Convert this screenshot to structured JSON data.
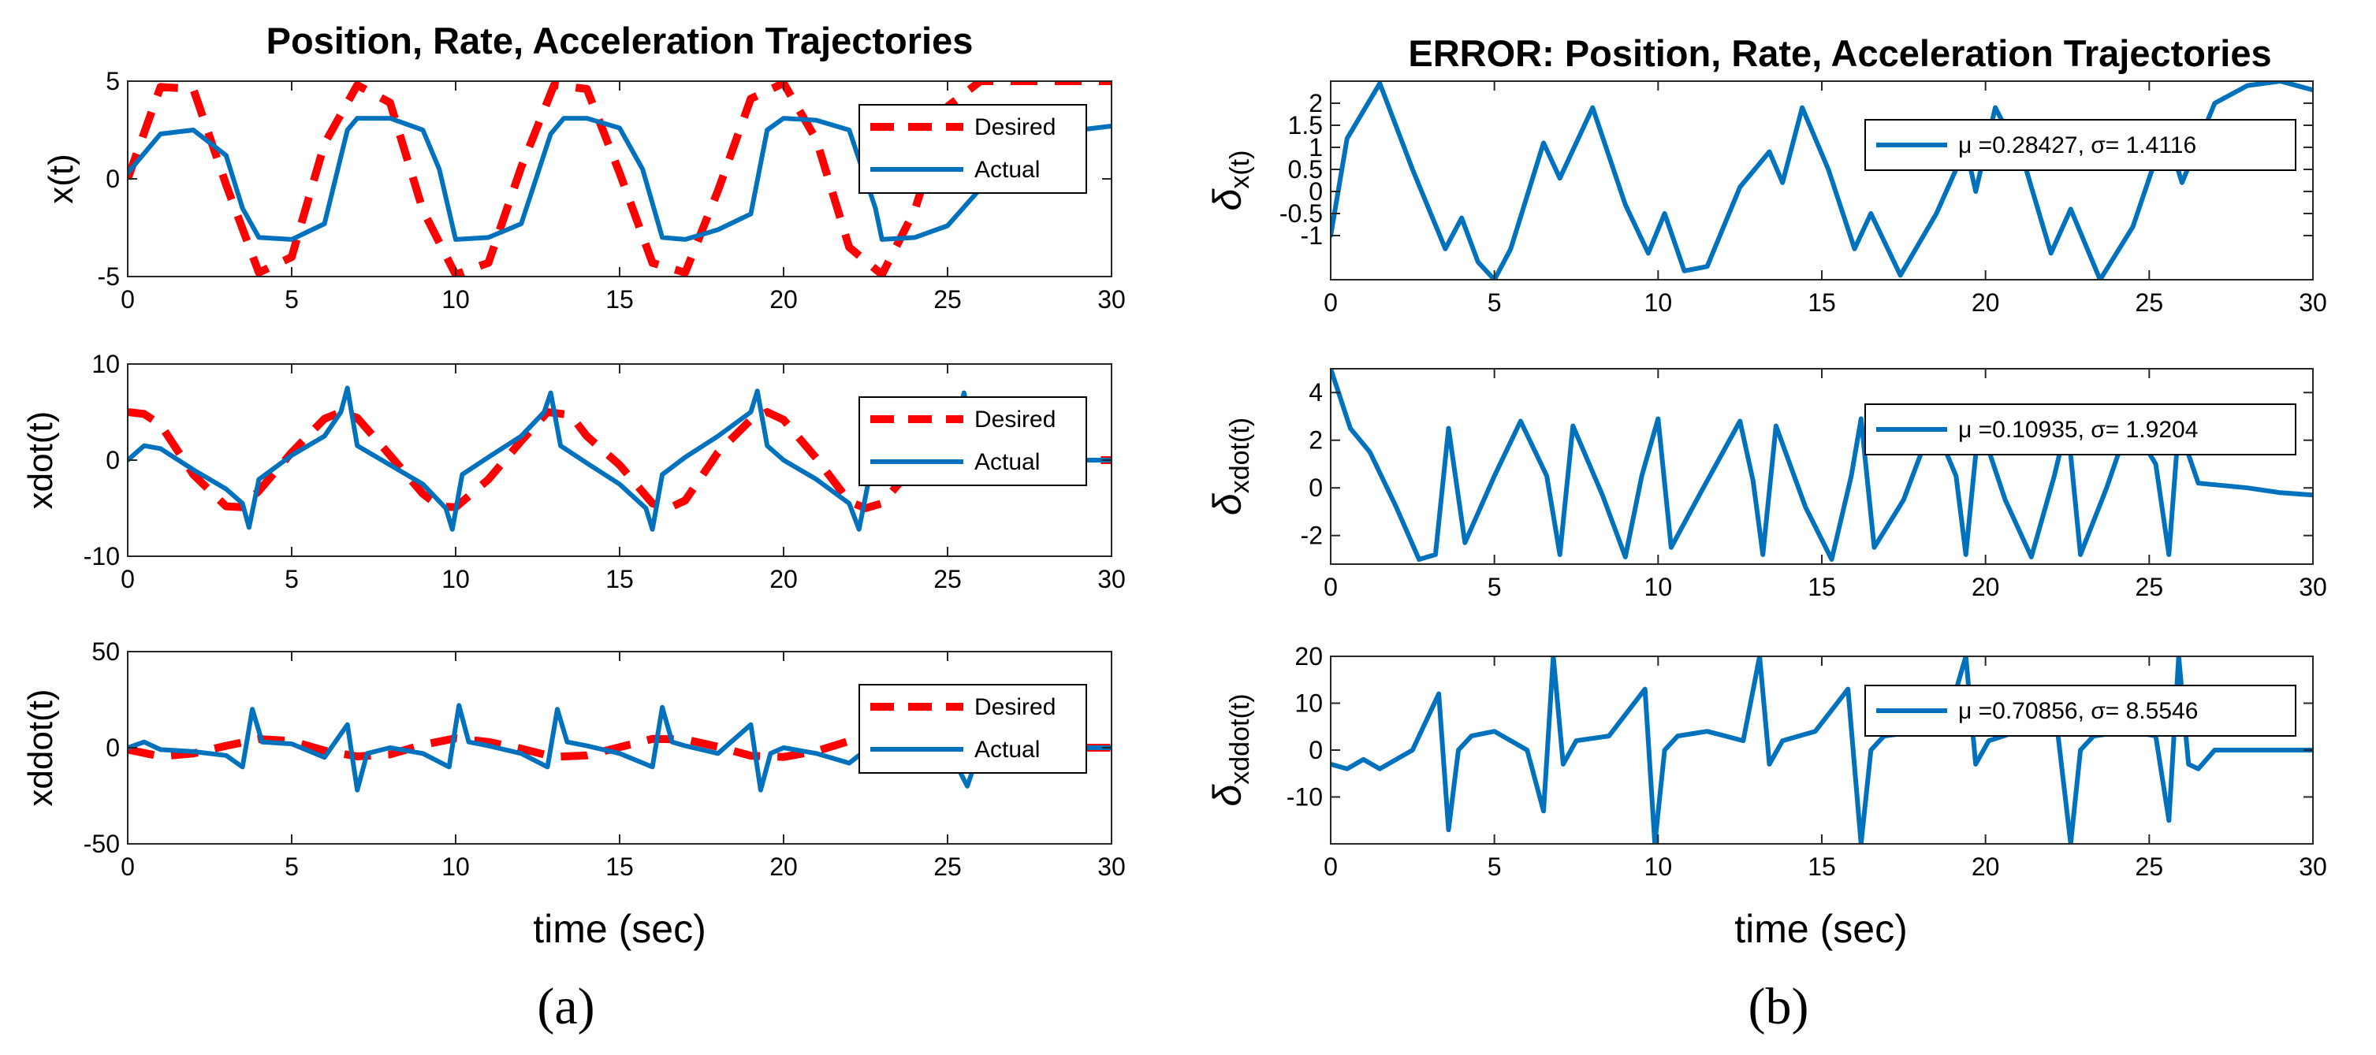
{
  "colors": {
    "desired": "#ff0000",
    "actual": "#0072bd",
    "axis": "#262626",
    "legend_border": "#000000"
  },
  "chart_data": [
    {
      "type": "line",
      "panel": "a",
      "title": "Position, Rate, Acceleration Trajectories",
      "xlabel": "",
      "ylabel": "x(t)",
      "xlim": [
        0,
        30
      ],
      "ylim": [
        -5,
        5
      ],
      "xticks": [
        0,
        5,
        10,
        15,
        20,
        25,
        30
      ],
      "yticks": [
        -5,
        0,
        5
      ],
      "legend": {
        "position": "top-right",
        "entries": [
          "Desired",
          "Actual"
        ]
      },
      "series": [
        {
          "name": "Desired",
          "style": "dashed",
          "color": "#ff0000",
          "x": [
            0,
            1,
            2,
            3,
            4,
            5,
            6,
            7,
            8,
            9,
            10,
            11,
            12,
            13,
            14,
            15,
            16,
            17,
            18,
            19,
            20,
            21,
            22,
            23,
            24,
            25,
            26,
            27,
            28,
            29,
            30
          ],
          "y": [
            0,
            4.7,
            4.6,
            -0.3,
            -4.8,
            -4.0,
            1.8,
            4.8,
            3.9,
            -1.6,
            -4.9,
            -4.3,
            0.6,
            4.8,
            4.6,
            0.3,
            -4.3,
            -4.8,
            -0.6,
            4.1,
            4.9,
            2.0,
            -3.5,
            -4.9,
            -1.6,
            3.7,
            5.0,
            5.0,
            5.0,
            5.0,
            5.0
          ]
        },
        {
          "name": "Actual",
          "style": "solid",
          "color": "#0072bd",
          "x": [
            0,
            1,
            2,
            3,
            3.5,
            4,
            5,
            6,
            6.7,
            7,
            8,
            9,
            9.5,
            10,
            11,
            12,
            12.9,
            13.3,
            14,
            15,
            15.7,
            16.3,
            17,
            18,
            19,
            19.5,
            20,
            21,
            22,
            22.8,
            23,
            24,
            25,
            26,
            27,
            28,
            29,
            30
          ],
          "y": [
            0.3,
            2.3,
            2.5,
            1.2,
            -1.5,
            -3.0,
            -3.1,
            -2.3,
            2.5,
            3.1,
            3.1,
            2.5,
            0.5,
            -3.1,
            -3.0,
            -2.3,
            2.3,
            3.1,
            3.1,
            2.6,
            0.5,
            -3.0,
            -3.1,
            -2.6,
            -1.8,
            2.5,
            3.1,
            3.0,
            2.5,
            -1.5,
            -3.1,
            -3.0,
            -2.4,
            -0.5,
            1.8,
            2.4,
            2.5,
            2.7
          ]
        }
      ]
    },
    {
      "type": "line",
      "panel": "a",
      "title": "",
      "xlabel": "",
      "ylabel": "xdot(t)",
      "xlim": [
        0,
        30
      ],
      "ylim": [
        -10,
        10
      ],
      "xticks": [
        0,
        5,
        10,
        15,
        20,
        25,
        30
      ],
      "yticks": [
        -10,
        0,
        10
      ],
      "legend": {
        "position": "top-right",
        "entries": [
          "Desired",
          "Actual"
        ]
      },
      "series": [
        {
          "name": "Desired",
          "style": "dashed",
          "color": "#ff0000",
          "x": [
            0,
            0.5,
            1,
            2,
            3,
            3.5,
            4,
            5,
            6,
            6.5,
            7,
            8,
            9,
            9.5,
            10,
            11,
            12,
            12.8,
            13.5,
            14,
            15,
            16,
            16.5,
            17,
            18,
            19,
            19.5,
            20,
            21,
            22,
            22.5,
            23,
            24,
            25,
            26,
            27,
            28,
            29,
            30
          ],
          "y": [
            5,
            4.8,
            3.7,
            -1.5,
            -4.8,
            -4.9,
            -3.2,
            0.8,
            4.3,
            5.0,
            4.4,
            0.5,
            -3.5,
            -4.8,
            -4.9,
            -2.0,
            2.0,
            5.0,
            4.7,
            2.5,
            -0.5,
            -4.5,
            -5.0,
            -4.2,
            0.8,
            4.2,
            5.0,
            4.2,
            0.2,
            -4.3,
            -5.0,
            -4.5,
            -0.5,
            -0.2,
            -0.1,
            0,
            0,
            0,
            0
          ]
        },
        {
          "name": "Actual",
          "style": "solid",
          "color": "#0072bd",
          "x": [
            0,
            0.5,
            1,
            2,
            3,
            3.5,
            3.7,
            4,
            5,
            6,
            6.5,
            6.7,
            7,
            8,
            9,
            9.7,
            9.9,
            10.2,
            11,
            12,
            12.7,
            12.9,
            13.2,
            14,
            15,
            15.8,
            16.0,
            16.3,
            17,
            18,
            19,
            19.2,
            19.5,
            20,
            21,
            22,
            22.3,
            22.6,
            23,
            24,
            25,
            25.5,
            26,
            27,
            28,
            29,
            30
          ],
          "y": [
            0,
            1.5,
            1.2,
            -1.0,
            -3.0,
            -4.5,
            -7.0,
            -2.0,
            0.5,
            2.5,
            5.0,
            7.5,
            1.5,
            -0.5,
            -2.5,
            -5.0,
            -7.2,
            -1.5,
            0.3,
            2.5,
            5.0,
            7.0,
            1.5,
            -0.3,
            -2.5,
            -5.0,
            -7.2,
            -1.5,
            0.3,
            2.5,
            5.0,
            7.2,
            1.5,
            0.0,
            -2.0,
            -4.5,
            -7.2,
            -2.0,
            0,
            0,
            0,
            7.0,
            0,
            0,
            0,
            0,
            0
          ]
        }
      ]
    },
    {
      "type": "line",
      "panel": "a",
      "title": "",
      "xlabel": "time (sec)",
      "ylabel": "xddot(t)",
      "xlim": [
        0,
        30
      ],
      "ylim": [
        -50,
        50
      ],
      "xticks": [
        0,
        5,
        10,
        15,
        20,
        25,
        30
      ],
      "yticks": [
        -50,
        0,
        50
      ],
      "legend": {
        "position": "top-right",
        "entries": [
          "Desired",
          "Actual"
        ]
      },
      "series": [
        {
          "name": "Desired",
          "style": "dashed",
          "color": "#ff0000",
          "x": [
            0,
            1,
            2,
            3,
            4,
            5,
            6,
            7,
            8,
            9,
            10,
            11,
            12,
            13,
            14,
            15,
            16,
            17,
            18,
            19,
            20,
            21,
            22,
            23,
            24,
            25,
            26,
            27,
            28,
            29,
            30
          ],
          "y": [
            -1,
            -4.5,
            -3,
            1,
            4.5,
            3.5,
            -1.5,
            -4.5,
            -3.5,
            1.5,
            4.9,
            3.0,
            -0.5,
            -4.8,
            -4.0,
            0.3,
            4.6,
            4.3,
            0.5,
            -4.2,
            -4.8,
            -1.8,
            3.5,
            4.9,
            1.5,
            -0.5,
            -0.2,
            0,
            0,
            0,
            0
          ]
        },
        {
          "name": "Actual",
          "style": "solid",
          "color": "#0072bd",
          "x": [
            0,
            0.5,
            1,
            2,
            3,
            3.5,
            3.8,
            4.1,
            5,
            6,
            6.7,
            7.0,
            7.3,
            8,
            9,
            9.8,
            10.1,
            10.4,
            11,
            12,
            12.8,
            13.1,
            13.4,
            14,
            15,
            16.0,
            16.3,
            16.6,
            17,
            18,
            19.0,
            19.3,
            19.6,
            20,
            21,
            22,
            22.6,
            23,
            24,
            25,
            25.6,
            26,
            27,
            28,
            29,
            30
          ],
          "y": [
            0,
            3,
            -1,
            -2,
            -4,
            -10,
            20,
            3,
            2,
            -5,
            12,
            -22,
            -3,
            0,
            -3,
            -10,
            22,
            3,
            1,
            -3,
            -10,
            20,
            3,
            1,
            -3,
            -10,
            21,
            3,
            1,
            -3,
            12,
            -22,
            -3,
            0,
            -3,
            -8,
            0,
            0,
            0,
            0,
            -20,
            0,
            0,
            0,
            0,
            0
          ]
        }
      ]
    },
    {
      "type": "line",
      "panel": "b",
      "title": "ERROR: Position, Rate, Acceleration Trajectories",
      "xlabel": "",
      "ylabel": "δ",
      "ylabel_subscript": "x(t)",
      "xlim": [
        0,
        30
      ],
      "ylim": [
        -2,
        2.5
      ],
      "xticks": [
        0,
        5,
        10,
        15,
        20,
        25,
        30
      ],
      "yticks": [
        -1,
        -0.5,
        0,
        0.5,
        1,
        1.5,
        2
      ],
      "legend": {
        "position": "top-right",
        "entries": [
          "μ =0.28427,  σ= 1.4116"
        ]
      },
      "series": [
        {
          "name": "μ =0.28427,  σ= 1.4116",
          "style": "solid",
          "color": "#0072bd",
          "x": [
            0,
            0.5,
            1.5,
            2.5,
            3.5,
            4,
            4.5,
            5,
            5.5,
            6.5,
            7,
            8,
            9,
            9.7,
            10.2,
            10.8,
            11.5,
            12.5,
            13.4,
            13.8,
            14.4,
            15.2,
            16,
            16.5,
            17.4,
            18.5,
            19.4,
            19.7,
            20.3,
            21.2,
            22,
            22.6,
            23.5,
            24.5,
            25.5,
            26,
            27,
            28,
            29,
            30
          ],
          "y": [
            -1,
            1.2,
            2.45,
            0.5,
            -1.3,
            -0.6,
            -1.6,
            -2.0,
            -1.3,
            1.1,
            0.3,
            1.9,
            -0.3,
            -1.4,
            -0.5,
            -1.8,
            -1.7,
            0.1,
            0.9,
            0.2,
            1.9,
            0.5,
            -1.3,
            -0.5,
            -1.9,
            -0.5,
            1.0,
            0.0,
            1.9,
            0.6,
            -1.4,
            -0.4,
            -2.0,
            -0.8,
            1.4,
            0.2,
            2.0,
            2.4,
            2.5,
            2.3
          ]
        }
      ]
    },
    {
      "type": "line",
      "panel": "b",
      "title": "",
      "xlabel": "",
      "ylabel": "δ",
      "ylabel_subscript": "xdot(t)",
      "xlim": [
        0,
        30
      ],
      "ylim": [
        -3.2,
        5
      ],
      "xticks": [
        0,
        5,
        10,
        15,
        20,
        25,
        30
      ],
      "yticks": [
        -2,
        0,
        2,
        4
      ],
      "legend": {
        "position": "top-right",
        "entries": [
          "μ =0.10935,  σ= 1.9204"
        ]
      },
      "series": [
        {
          "name": "μ =0.10935,  σ= 1.9204",
          "style": "solid",
          "color": "#0072bd",
          "x": [
            0,
            0.6,
            1.2,
            2,
            2.7,
            3.2,
            3.6,
            4.1,
            5,
            5.8,
            6.6,
            7.0,
            7.4,
            8.3,
            9,
            9.5,
            10.0,
            10.4,
            11.3,
            12.5,
            12.9,
            13.2,
            13.6,
            14.5,
            15.3,
            15.9,
            16.2,
            16.6,
            17.5,
            18.4,
            19.1,
            19.4,
            19.8,
            20.6,
            21.4,
            22.1,
            22.5,
            22.9,
            23.7,
            24.4,
            25.2,
            25.6,
            25.9,
            26.5,
            28,
            29,
            30
          ],
          "y": [
            5,
            2.5,
            1.5,
            -0.8,
            -3.0,
            -2.8,
            2.5,
            -2.3,
            0.5,
            2.8,
            0.5,
            -2.8,
            2.6,
            -0.3,
            -2.9,
            0.5,
            2.9,
            -2.5,
            -0.2,
            2.8,
            0.3,
            -2.8,
            2.6,
            -0.8,
            -3.0,
            0.5,
            2.9,
            -2.5,
            -0.5,
            2.8,
            0.5,
            -2.8,
            2.8,
            -0.5,
            -2.9,
            0.5,
            2.8,
            -2.8,
            0.0,
            2.8,
            1.0,
            -2.8,
            2.6,
            0.2,
            0.0,
            -0.2,
            -0.3
          ]
        }
      ]
    },
    {
      "type": "line",
      "panel": "b",
      "title": "",
      "xlabel": "time (sec)",
      "ylabel": "δ",
      "ylabel_subscript": "xddot(t)",
      "xlim": [
        0,
        30
      ],
      "ylim": [
        -20,
        20
      ],
      "xticks": [
        0,
        5,
        10,
        15,
        20,
        25,
        30
      ],
      "yticks": [
        -10,
        0,
        10,
        20
      ],
      "legend": {
        "position": "top-right",
        "entries": [
          "μ =0.70856,  σ= 8.5546"
        ]
      },
      "series": [
        {
          "name": "μ =0.70856,  σ= 8.5546",
          "style": "solid",
          "color": "#0072bd",
          "x": [
            0,
            0.5,
            1,
            1.5,
            2.5,
            3.3,
            3.6,
            3.9,
            4.3,
            5,
            6,
            6.5,
            6.8,
            7.1,
            7.5,
            8.5,
            9.6,
            9.9,
            10.2,
            10.6,
            11.5,
            12.6,
            13.1,
            13.4,
            13.8,
            14.8,
            15.8,
            16.2,
            16.5,
            16.9,
            18,
            18.9,
            19.4,
            19.7,
            20.1,
            21,
            22.1,
            22.6,
            22.9,
            23.3,
            24.4,
            25.2,
            25.6,
            25.9,
            26.2,
            26.5,
            27,
            28,
            29,
            30
          ],
          "y": [
            -3,
            -4,
            -2,
            -4,
            0,
            12,
            -17,
            0,
            3,
            4,
            0,
            -13,
            20,
            -3,
            2,
            3,
            13,
            -20,
            0,
            3,
            4,
            2,
            20,
            -3,
            2,
            4,
            13,
            -20,
            0,
            3,
            4,
            8,
            20,
            -3,
            2,
            4,
            10,
            -20,
            0,
            3,
            4,
            3,
            -15,
            20,
            -3,
            -4,
            0,
            0,
            0,
            0
          ]
        }
      ]
    }
  ],
  "captions": {
    "left": "(a)",
    "right": "(b)"
  }
}
